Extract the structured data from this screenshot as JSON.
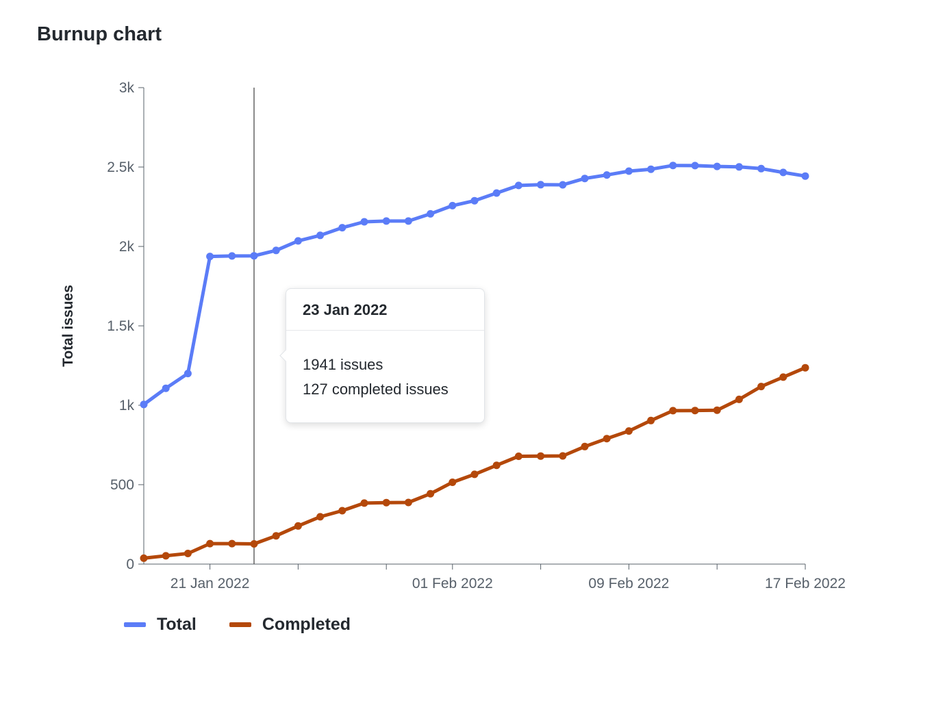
{
  "title": "Burnup chart",
  "colors": {
    "total": "#5b7cf7",
    "completed": "#b4480a",
    "axis": "#57606a",
    "crosshair": "#4a4a4a"
  },
  "tooltip": {
    "date": "23 Jan 2022",
    "line1": "1941 issues",
    "line2": "127 completed issues"
  },
  "legend": [
    {
      "name": "Total",
      "color": "#5b7cf7"
    },
    {
      "name": "Completed",
      "color": "#b4480a"
    }
  ],
  "chart_data": {
    "type": "line",
    "ylabel": "Total issues",
    "xlabel": "",
    "ylim": [
      0,
      3000
    ],
    "y_ticks": [
      {
        "value": 0,
        "label": "0"
      },
      {
        "value": 500,
        "label": "500"
      },
      {
        "value": 1000,
        "label": "1k"
      },
      {
        "value": 1500,
        "label": "1.5k"
      },
      {
        "value": 2000,
        "label": "2k"
      },
      {
        "value": 2500,
        "label": "2.5k"
      },
      {
        "value": 3000,
        "label": "3k"
      }
    ],
    "x_dates": [
      "2022-01-18",
      "2022-01-19",
      "2022-01-20",
      "2022-01-21",
      "2022-01-22",
      "2022-01-23",
      "2022-01-24",
      "2022-01-25",
      "2022-01-26",
      "2022-01-27",
      "2022-01-28",
      "2022-01-29",
      "2022-01-30",
      "2022-01-31",
      "2022-02-01",
      "2022-02-02",
      "2022-02-03",
      "2022-02-04",
      "2022-02-05",
      "2022-02-06",
      "2022-02-07",
      "2022-02-08",
      "2022-02-09",
      "2022-02-10",
      "2022-02-11",
      "2022-02-12",
      "2022-02-13",
      "2022-02-14",
      "2022-02-15",
      "2022-02-16",
      "2022-02-17"
    ],
    "x_range": [
      "2022-01-18",
      "2022-02-17"
    ],
    "x_tick_labels": [
      {
        "date": "2022-01-21",
        "label": "21 Jan 2022"
      },
      {
        "date": "2022-02-01",
        "label": "01 Feb 2022"
      },
      {
        "date": "2022-02-09",
        "label": "09 Feb 2022"
      },
      {
        "date": "2022-02-17",
        "label": "17 Feb 2022"
      }
    ],
    "x_minor_ticks": [
      "2022-01-25",
      "2022-01-29",
      "2022-02-05",
      "2022-02-13"
    ],
    "crosshair_date": "2022-01-23",
    "series": [
      {
        "name": "Total",
        "color": "#5b7cf7",
        "values": [
          1005,
          1107,
          1200,
          1937,
          1940,
          1941,
          1975,
          2035,
          2070,
          2118,
          2155,
          2160,
          2160,
          2205,
          2257,
          2288,
          2336,
          2384,
          2389,
          2388,
          2428,
          2450,
          2474,
          2486,
          2510,
          2509,
          2504,
          2501,
          2490,
          2466,
          2443
        ]
      },
      {
        "name": "Completed",
        "color": "#b4480a",
        "values": [
          37,
          52,
          67,
          129,
          129,
          127,
          178,
          240,
          298,
          336,
          384,
          387,
          388,
          443,
          515,
          565,
          622,
          679,
          680,
          681,
          740,
          790,
          838,
          904,
          966,
          967,
          969,
          1037,
          1118,
          1177,
          1236
        ]
      }
    ]
  }
}
